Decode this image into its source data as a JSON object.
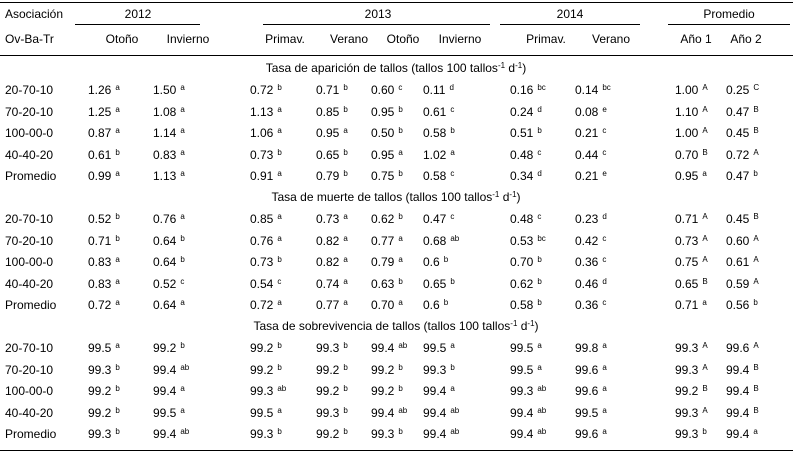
{
  "header": {
    "corner_top": "Asociación",
    "corner_bottom": "Ov-Ba-Tr",
    "groups": [
      "2012",
      "2013",
      "2014",
      "Promedio"
    ],
    "columns": [
      "Otoño",
      "Invierno",
      "Primav.",
      "Verano",
      "Otoño",
      "Invierno",
      "Primav.",
      "Verano",
      "Año 1",
      "Año 2"
    ]
  },
  "sections": [
    {
      "title": [
        "Tasa de aparición de tallos (tallos 100 tallos",
        "-1",
        " d",
        "-1",
        ")"
      ],
      "rows": [
        {
          "label": "20-70-10",
          "cells": [
            [
              "1.26",
              "a"
            ],
            [
              "1.50",
              "a"
            ],
            [
              "0.72",
              "b"
            ],
            [
              "0.71",
              "b"
            ],
            [
              "0.60",
              "c"
            ],
            [
              "0.11",
              "d"
            ],
            [
              "0.16",
              "bc"
            ],
            [
              "0.14",
              "bc"
            ],
            [
              "1.00",
              "A"
            ],
            [
              "0.25",
              "C"
            ]
          ]
        },
        {
          "label": "70-20-10",
          "cells": [
            [
              "1.25",
              "a"
            ],
            [
              "1.08",
              "a"
            ],
            [
              "1.13",
              "a"
            ],
            [
              "0.85",
              "b"
            ],
            [
              "0.95",
              "b"
            ],
            [
              "0.61",
              "c"
            ],
            [
              "0.24",
              "d"
            ],
            [
              "0.08",
              "e"
            ],
            [
              "1.10",
              "A"
            ],
            [
              "0.47",
              "B"
            ]
          ]
        },
        {
          "label": "100-00-0",
          "cells": [
            [
              "0.87",
              "a"
            ],
            [
              "1.14",
              "a"
            ],
            [
              "1.06",
              "a"
            ],
            [
              "0.95",
              "a"
            ],
            [
              "0.50",
              "b"
            ],
            [
              "0.58",
              "b"
            ],
            [
              "0.51",
              "b"
            ],
            [
              "0.21",
              "c"
            ],
            [
              "1.00",
              "A"
            ],
            [
              "0.45",
              "B"
            ]
          ]
        },
        {
          "label": "40-40-20",
          "cells": [
            [
              "0.61",
              "b"
            ],
            [
              "0.83",
              "a"
            ],
            [
              "0.73",
              "b"
            ],
            [
              "0.65",
              "b"
            ],
            [
              "0.95",
              "a"
            ],
            [
              "1.02",
              "a"
            ],
            [
              "0.48",
              "c"
            ],
            [
              "0.44",
              "c"
            ],
            [
              "0.70",
              "B"
            ],
            [
              "0.72",
              "A"
            ]
          ]
        },
        {
          "label": "Promedio",
          "cells": [
            [
              "0.99",
              "a"
            ],
            [
              "1.13",
              "a"
            ],
            [
              "0.91",
              "a"
            ],
            [
              "0.79",
              "b"
            ],
            [
              "0.75",
              "b"
            ],
            [
              "0.58",
              "c"
            ],
            [
              "0.34",
              "d"
            ],
            [
              "0.21",
              "e"
            ],
            [
              "0.95",
              "a"
            ],
            [
              "0.47",
              "b"
            ]
          ]
        }
      ]
    },
    {
      "title": [
        "Tasa de muerte de tallos (tallos 100 tallos",
        "-1",
        " d",
        "-1",
        ")"
      ],
      "rows": [
        {
          "label": "20-70-10",
          "cells": [
            [
              "0.52",
              "b"
            ],
            [
              "0.76",
              "a"
            ],
            [
              "0.85",
              "a"
            ],
            [
              "0.73",
              "a"
            ],
            [
              "0.62",
              "b"
            ],
            [
              "0.47",
              "c"
            ],
            [
              "0.48",
              "c"
            ],
            [
              "0.23",
              "d"
            ],
            [
              "0.71",
              "A"
            ],
            [
              "0.45",
              "B"
            ]
          ]
        },
        {
          "label": "70-20-10",
          "cells": [
            [
              "0.71",
              "b"
            ],
            [
              "0.64",
              "b"
            ],
            [
              "0.76",
              "a"
            ],
            [
              "0.82",
              "a"
            ],
            [
              "0.77",
              "a"
            ],
            [
              "0.68",
              "ab"
            ],
            [
              "0.53",
              "bc"
            ],
            [
              "0.42",
              "c"
            ],
            [
              "0.73",
              "A"
            ],
            [
              "0.60",
              "A"
            ]
          ]
        },
        {
          "label": "100-00-0",
          "cells": [
            [
              "0.83",
              "a"
            ],
            [
              "0.64",
              "b"
            ],
            [
              "0.73",
              "b"
            ],
            [
              "0.82",
              "a"
            ],
            [
              "0.79",
              "a"
            ],
            [
              "0.6",
              "b"
            ],
            [
              "0.70",
              "b"
            ],
            [
              "0.36",
              "c"
            ],
            [
              "0.75",
              "A"
            ],
            [
              "0.61",
              "A"
            ]
          ]
        },
        {
          "label": "40-40-20",
          "cells": [
            [
              "0.83",
              "a"
            ],
            [
              "0.52",
              "c"
            ],
            [
              "0.54",
              "c"
            ],
            [
              "0.74",
              "a"
            ],
            [
              "0.63",
              "b"
            ],
            [
              "0.65",
              "b"
            ],
            [
              "0.62",
              "b"
            ],
            [
              "0.46",
              "d"
            ],
            [
              "0.65",
              "B"
            ],
            [
              "0.59",
              "A"
            ]
          ]
        },
        {
          "label": "Promedio",
          "cells": [
            [
              "0.72",
              "a"
            ],
            [
              "0.64",
              "a"
            ],
            [
              "0.72",
              "a"
            ],
            [
              "0.77",
              "a"
            ],
            [
              "0.70",
              "a"
            ],
            [
              "0.6",
              "b"
            ],
            [
              "0.58",
              "b"
            ],
            [
              "0.36",
              "c"
            ],
            [
              "0.71",
              "a"
            ],
            [
              "0.56",
              "b"
            ]
          ]
        }
      ]
    },
    {
      "title": [
        "Tasa de sobrevivencia de tallos (tallos 100 tallos",
        "-1",
        " d",
        "-1",
        ")"
      ],
      "rows": [
        {
          "label": "20-70-10",
          "cells": [
            [
              "99.5",
              "a"
            ],
            [
              "99.2",
              "b"
            ],
            [
              "99.2",
              "b"
            ],
            [
              "99.3",
              "b"
            ],
            [
              "99.4",
              "ab"
            ],
            [
              "99.5",
              "a"
            ],
            [
              "99.5",
              "a"
            ],
            [
              "99.8",
              "a"
            ],
            [
              "99.3",
              "A"
            ],
            [
              "99.6",
              "A"
            ]
          ]
        },
        {
          "label": "70-20-10",
          "cells": [
            [
              "99.3",
              "b"
            ],
            [
              "99.4",
              "ab"
            ],
            [
              "99.2",
              "b"
            ],
            [
              "99.2",
              "b"
            ],
            [
              "99.2",
              "b"
            ],
            [
              "99.3",
              "b"
            ],
            [
              "99.5",
              "a"
            ],
            [
              "99.6",
              "a"
            ],
            [
              "99.3",
              "A"
            ],
            [
              "99.4",
              "B"
            ]
          ]
        },
        {
          "label": "100-00-0",
          "cells": [
            [
              "99.2",
              "b"
            ],
            [
              "99.4",
              "a"
            ],
            [
              "99.3",
              "ab"
            ],
            [
              "99.2",
              "b"
            ],
            [
              "99.2",
              "b"
            ],
            [
              "99.4",
              "a"
            ],
            [
              "99.3",
              "ab"
            ],
            [
              "99.6",
              "a"
            ],
            [
              "99.2",
              "B"
            ],
            [
              "99.4",
              "B"
            ]
          ]
        },
        {
          "label": "40-40-20",
          "cells": [
            [
              "99.2",
              "b"
            ],
            [
              "99.5",
              "a"
            ],
            [
              "99.5",
              "a"
            ],
            [
              "99.3",
              "b"
            ],
            [
              "99.4",
              "ab"
            ],
            [
              "99.4",
              "ab"
            ],
            [
              "99.4",
              "ab"
            ],
            [
              "99.5",
              "a"
            ],
            [
              "99.3",
              "A"
            ],
            [
              "99.4",
              "B"
            ]
          ]
        },
        {
          "label": "Promedio",
          "cells": [
            [
              "99.3",
              "b"
            ],
            [
              "99.4",
              "ab"
            ],
            [
              "99.3",
              "b"
            ],
            [
              "99.2",
              "b"
            ],
            [
              "99.3",
              "b"
            ],
            [
              "99.4",
              "ab"
            ],
            [
              "99.4",
              "ab"
            ],
            [
              "99.6",
              "a"
            ],
            [
              "99.3",
              "b"
            ],
            [
              "99.4",
              "a"
            ]
          ]
        }
      ]
    }
  ]
}
